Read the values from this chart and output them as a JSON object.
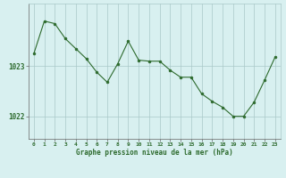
{
  "hours": [
    0,
    1,
    2,
    3,
    4,
    5,
    6,
    7,
    8,
    9,
    10,
    11,
    12,
    13,
    14,
    15,
    16,
    17,
    18,
    19,
    20,
    21,
    22,
    23
  ],
  "pressure": [
    1023.25,
    1023.9,
    1023.85,
    1023.55,
    1023.35,
    1023.15,
    1022.88,
    1022.68,
    1023.05,
    1023.5,
    1023.12,
    1023.1,
    1023.1,
    1022.92,
    1022.78,
    1022.78,
    1022.45,
    1022.3,
    1022.18,
    1022.0,
    1022.0,
    1022.28,
    1022.72,
    1023.18
  ],
  "line_color": "#2d6a2d",
  "marker": "o",
  "marker_size": 2.0,
  "bg_color": "#d8f0f0",
  "plot_bg_color": "#d8f0f0",
  "grid_color": "#aac8c8",
  "xlabel": "Graphe pression niveau de la mer (hPa)",
  "xlabel_color": "#2d6a2d",
  "tick_color": "#2d6a2d",
  "ylabel_ticks": [
    1022,
    1023
  ],
  "ylim": [
    1021.55,
    1024.25
  ],
  "xlim": [
    -0.5,
    23.5
  ]
}
